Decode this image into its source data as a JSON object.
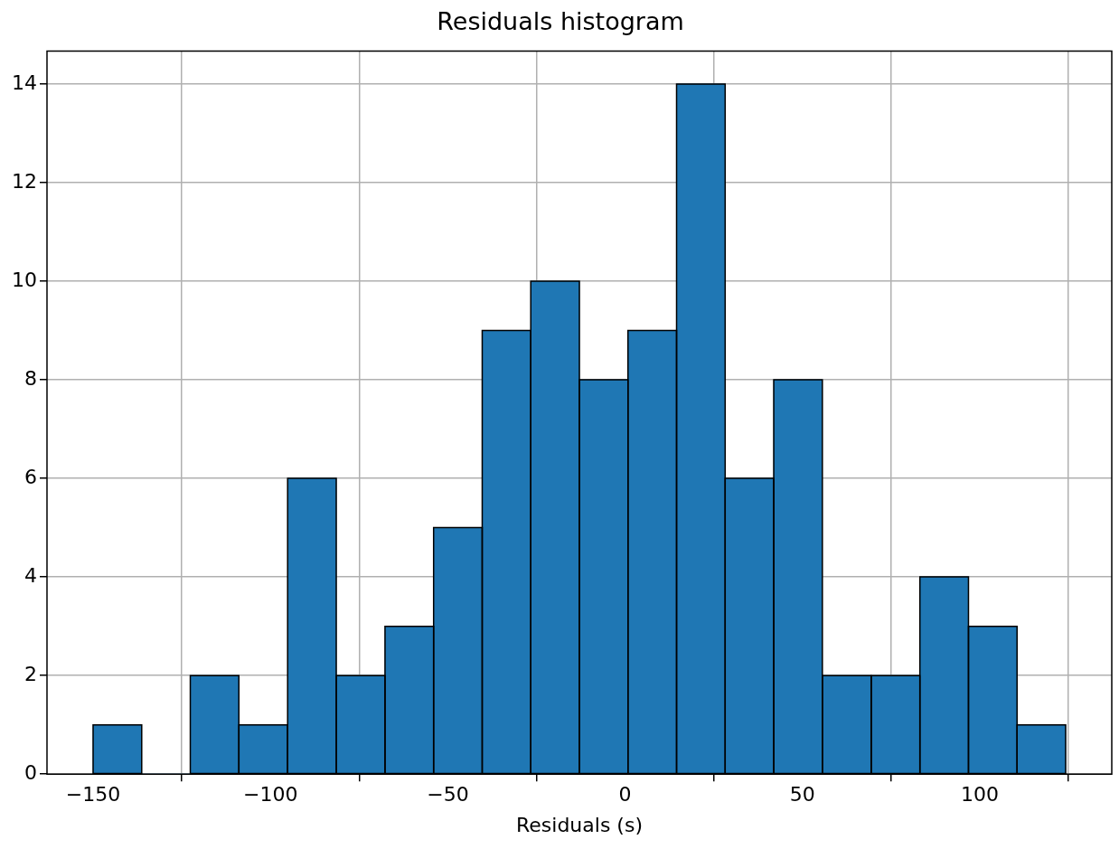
{
  "chart_data": {
    "type": "histogram",
    "title": "Residuals histogram",
    "xlabel": "Residuals (s)",
    "bins": [
      -150,
      -136.3,
      -122.6,
      -108.9,
      -95.2,
      -81.4,
      -67.7,
      -54.0,
      -40.3,
      -26.6,
      -12.9,
      0.8,
      14.5,
      28.2,
      41.9,
      55.6,
      69.4,
      83.1,
      96.8,
      110.5,
      124.2
    ],
    "values": [
      1,
      0,
      2,
      1,
      6,
      2,
      3,
      5,
      9,
      10,
      8,
      9,
      14,
      6,
      8,
      2,
      2,
      4,
      3,
      1
    ],
    "color": "#1f77b4",
    "xlim": [
      -163,
      137.2
    ],
    "ylim": [
      0,
      14.67
    ],
    "xticks": [
      {
        "value": -150,
        "label": "−150"
      },
      {
        "value": -100,
        "label": "−100"
      },
      {
        "value": -50,
        "label": "−50"
      },
      0,
      50,
      100
    ],
    "yticks": [
      0,
      2,
      4,
      6,
      8,
      10,
      12,
      14
    ],
    "grid": true
  }
}
